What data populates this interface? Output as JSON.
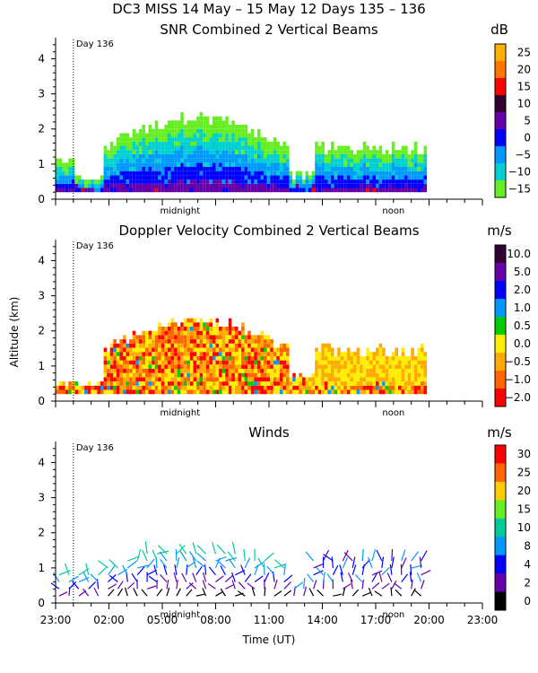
{
  "page_title": "DC3 MISS  14 May – 15 May 12 Days 135 – 136",
  "y_axis_label": "Altitude (km)",
  "x_axis_label": "Time (UT)",
  "x_ticks": [
    "23:00",
    "02:00",
    "05:00",
    "08:00",
    "11:00",
    "14:00",
    "17:00",
    "20:00",
    "23:00"
  ],
  "markers": {
    "day_label": "Day 136",
    "midnight": "midnight",
    "noon": "noon"
  },
  "chart_data": [
    {
      "type": "heatmap",
      "title": "SNR Combined 2 Vertical Beams",
      "ylabel": "Altitude (km)",
      "ylim": [
        0,
        4.6
      ],
      "yticks": [
        "0",
        "1",
        "2",
        "3",
        "4"
      ],
      "colorbar": {
        "unit": "dB",
        "labels": [
          "25",
          "20",
          "15",
          "10",
          "5",
          "0",
          "−5",
          "−10",
          "−15"
        ],
        "colors": [
          "#ffb000",
          "#ff7700",
          "#ff0000",
          "#330033",
          "#6600aa",
          "#0000ff",
          "#0099ff",
          "#00d0d0",
          "#66ee22"
        ]
      }
    },
    {
      "type": "heatmap",
      "title": "Doppler Velocity Combined 2 Vertical Beams",
      "ylabel": "Altitude (km)",
      "ylim": [
        0,
        4.6
      ],
      "yticks": [
        "0",
        "1",
        "2",
        "3",
        "4"
      ],
      "colorbar": {
        "unit": "m/s",
        "labels": [
          "10.0",
          "5.0",
          "2.0",
          "1.0",
          "0.5",
          "0.0",
          "−0.5",
          "−1.0",
          "−2.0"
        ],
        "colors": [
          "#330033",
          "#6600aa",
          "#0000ff",
          "#0099ff",
          "#00cc00",
          "#ffee00",
          "#ffaa00",
          "#ff6600",
          "#ff0000"
        ]
      }
    },
    {
      "type": "scatter",
      "title": "Winds",
      "ylabel": "Altitude (km)",
      "ylim": [
        0,
        4.6
      ],
      "yticks": [
        "0",
        "1",
        "2",
        "3",
        "4"
      ],
      "colorbar": {
        "unit": "m/s",
        "labels": [
          "30",
          "25",
          "20",
          "15",
          "10",
          "8",
          "4",
          "2",
          "0"
        ],
        "colors": [
          "#ff0000",
          "#ff6600",
          "#ffcc00",
          "#66ee22",
          "#00cc99",
          "#0099ff",
          "#0000ff",
          "#6600aa",
          "#000000"
        ]
      }
    }
  ]
}
